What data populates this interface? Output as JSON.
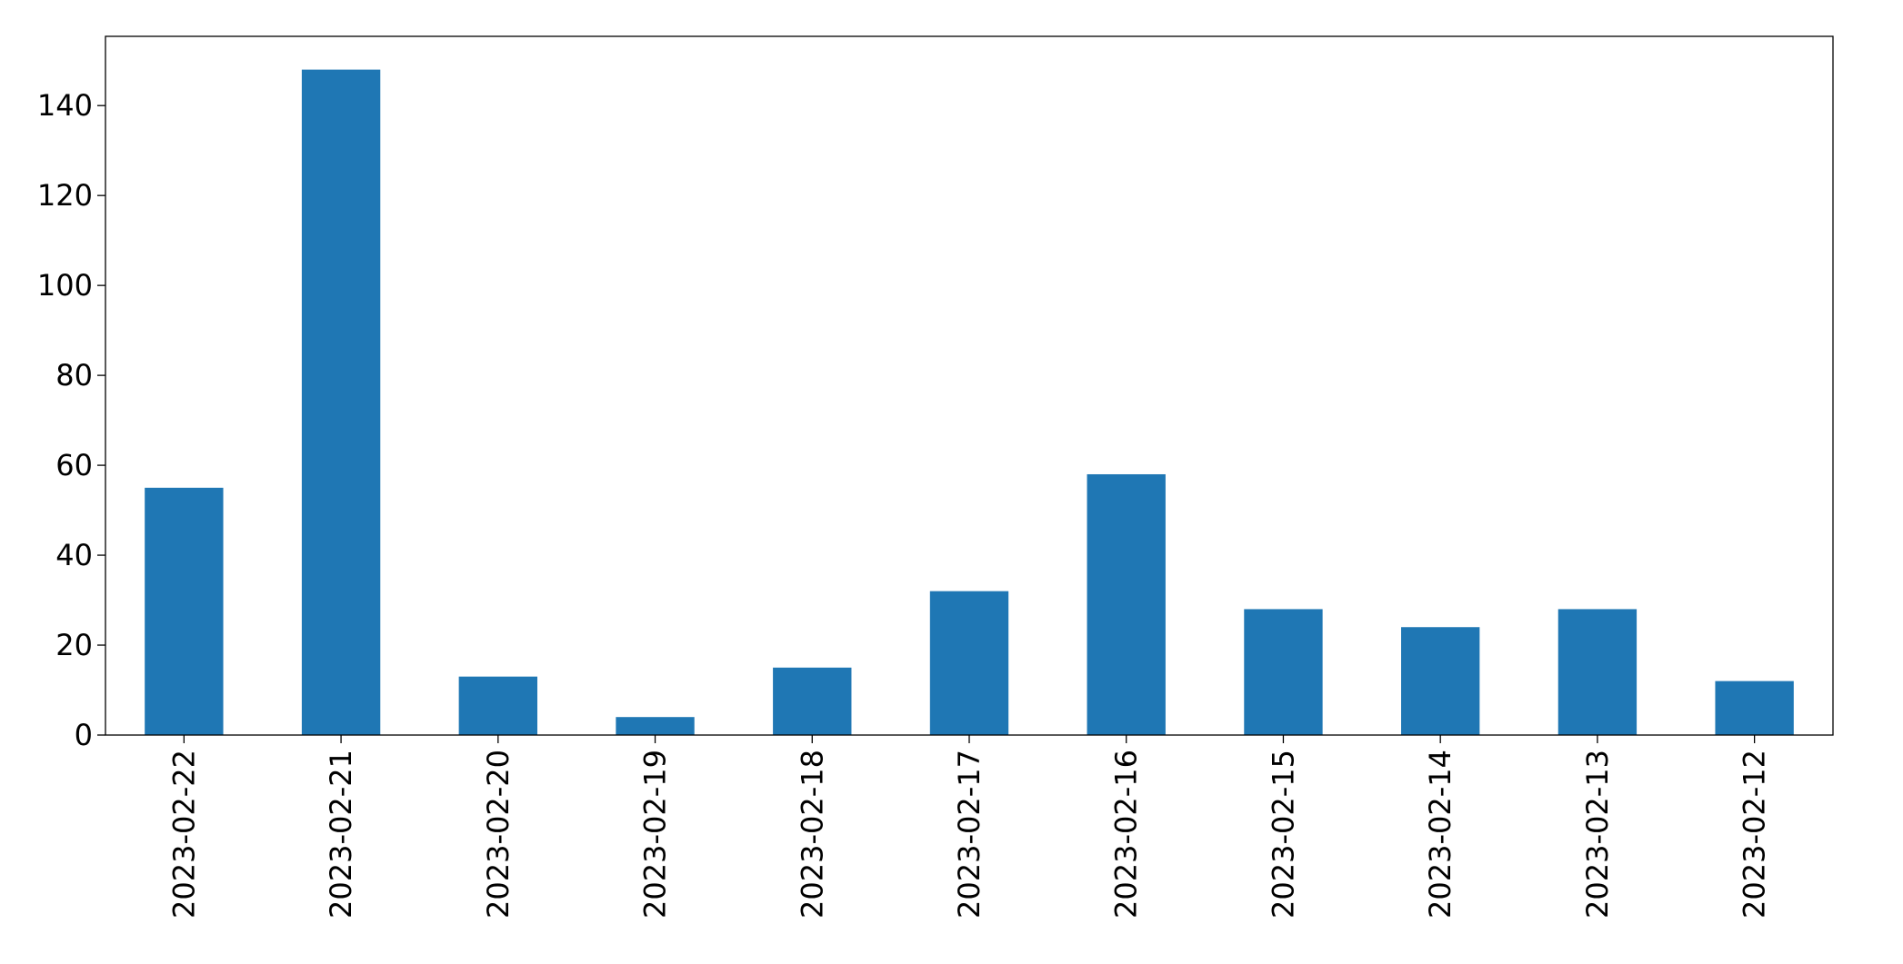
{
  "chart_data": {
    "type": "bar",
    "categories": [
      "2023-02-22",
      "2023-02-21",
      "2023-02-20",
      "2023-02-19",
      "2023-02-18",
      "2023-02-17",
      "2023-02-16",
      "2023-02-15",
      "2023-02-14",
      "2023-02-13",
      "2023-02-12"
    ],
    "values": [
      55,
      148,
      13,
      4,
      15,
      32,
      58,
      28,
      24,
      28,
      12
    ],
    "color": "#1f77b4",
    "ylim": [
      0,
      155.4
    ],
    "yticks": [
      0,
      20,
      40,
      60,
      80,
      100,
      120,
      140
    ],
    "grid": false
  }
}
